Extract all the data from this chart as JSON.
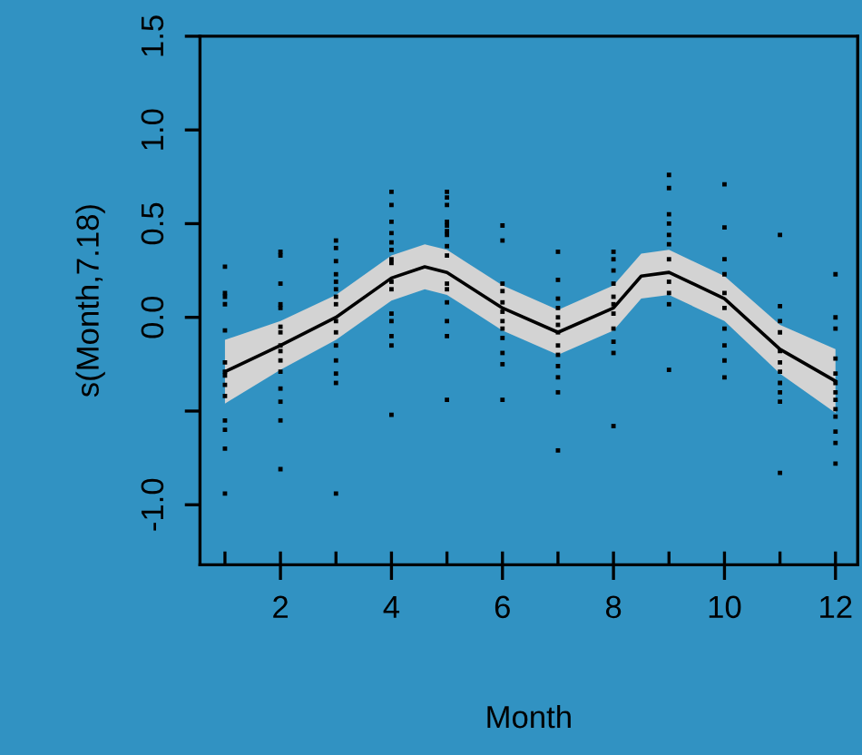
{
  "chart_data": {
    "type": "line",
    "xlabel": "Month",
    "ylabel": "s(Month,7.18)",
    "xlim": [
      0.55,
      12.4
    ],
    "ylim": [
      -1.32,
      1.5
    ],
    "xticks": [
      2,
      4,
      6,
      8,
      10,
      12
    ],
    "yticks": [
      1.5,
      {
        "value": 1.0,
        "label": "1.0"
      },
      0.5,
      {
        "value": 0.0,
        "label": "0.0"
      },
      {
        "value": -0.5,
        "label": null
      },
      {
        "value": -1.0,
        "label": "-1.0"
      }
    ],
    "grid": false,
    "legend": false,
    "tick_labels": "xy",
    "series": [
      {
        "color": "#000000",
        "x": [
          1,
          2,
          3,
          4,
          4.6,
          5,
          6,
          7,
          8,
          8.5,
          9,
          10,
          11,
          12
        ],
        "values": [
          -0.29,
          -0.15,
          0.0,
          0.21,
          0.27,
          0.24,
          0.05,
          -0.08,
          0.05,
          0.22,
          0.24,
          0.1,
          -0.17,
          -0.34
        ],
        "lower": [
          -0.46,
          -0.28,
          -0.12,
          0.09,
          0.15,
          0.12,
          -0.07,
          -0.2,
          -0.07,
          0.1,
          0.12,
          -0.02,
          -0.3,
          -0.51
        ],
        "upper": [
          -0.12,
          -0.02,
          0.12,
          0.33,
          0.39,
          0.36,
          0.17,
          0.04,
          0.17,
          0.34,
          0.36,
          0.22,
          -0.04,
          -0.17
        ]
      },
      {
        "type": "scatter",
        "color": "#000000",
        "x": [
          1,
          1,
          1,
          1,
          1,
          1,
          1,
          1,
          1,
          1,
          1,
          1,
          1,
          1,
          2,
          2,
          2,
          2,
          2,
          2,
          2,
          2,
          2,
          2,
          2,
          2,
          2,
          2,
          2,
          3,
          3,
          3,
          3,
          3,
          3,
          3,
          3,
          3,
          3,
          3,
          3,
          3,
          3,
          3,
          4,
          4,
          4,
          4,
          4,
          4,
          4,
          4,
          4,
          4,
          4,
          4,
          4,
          4,
          4,
          5,
          5,
          5,
          5,
          5,
          5,
          5,
          5,
          5,
          5,
          5,
          5,
          5,
          5,
          5,
          6,
          6,
          6,
          6,
          6,
          6,
          6,
          6,
          6,
          6,
          6,
          6,
          7,
          7,
          7,
          7,
          7,
          7,
          7,
          7,
          7,
          7,
          7,
          7,
          7,
          8,
          8,
          8,
          8,
          8,
          8,
          8,
          8,
          8,
          8,
          8,
          9,
          9,
          9,
          9,
          9,
          9,
          9,
          9,
          9,
          9,
          9,
          10,
          10,
          10,
          10,
          10,
          10,
          10,
          10,
          10,
          10,
          11,
          11,
          11,
          11,
          11,
          11,
          11,
          11,
          11,
          11,
          11,
          12,
          12,
          12,
          12,
          12,
          12,
          12,
          12,
          12,
          12,
          12,
          12,
          12
        ],
        "values": [
          0.27,
          0.13,
          0.11,
          0.07,
          -0.07,
          -0.24,
          -0.29,
          -0.31,
          -0.36,
          -0.42,
          -0.55,
          -0.6,
          -0.7,
          -0.94,
          0.35,
          0.33,
          0.18,
          0.07,
          0.05,
          -0.05,
          -0.08,
          -0.15,
          -0.18,
          -0.23,
          -0.29,
          -0.38,
          -0.45,
          -0.55,
          -0.81,
          0.41,
          0.37,
          0.3,
          0.23,
          0.19,
          0.15,
          0.11,
          0.07,
          -0.02,
          -0.08,
          -0.15,
          -0.23,
          -0.3,
          -0.35,
          -0.94,
          0.67,
          0.6,
          0.51,
          0.45,
          0.4,
          0.36,
          0.31,
          0.29,
          0.19,
          0.15,
          0.02,
          -0.02,
          -0.1,
          -0.15,
          -0.52,
          0.67,
          0.64,
          0.6,
          0.51,
          0.49,
          0.46,
          0.44,
          0.38,
          0.33,
          0.18,
          0.15,
          0.08,
          -0.02,
          -0.1,
          -0.44,
          0.49,
          0.41,
          0.18,
          0.14,
          0.08,
          0.03,
          -0.02,
          -0.06,
          -0.11,
          -0.19,
          -0.25,
          -0.44,
          0.35,
          0.2,
          0.1,
          0.05,
          0.0,
          -0.04,
          -0.08,
          -0.15,
          -0.2,
          -0.26,
          -0.32,
          -0.4,
          -0.71,
          0.35,
          0.31,
          0.25,
          0.18,
          0.11,
          0.07,
          0.02,
          -0.06,
          -0.13,
          -0.19,
          -0.58,
          0.76,
          0.69,
          0.55,
          0.5,
          0.44,
          0.39,
          0.31,
          0.19,
          0.13,
          0.07,
          -0.28,
          0.71,
          0.48,
          0.31,
          0.23,
          0.13,
          0.05,
          -0.06,
          -0.15,
          -0.23,
          -0.32,
          0.44,
          0.06,
          -0.02,
          -0.08,
          -0.18,
          -0.24,
          -0.29,
          -0.35,
          -0.4,
          -0.45,
          -0.83,
          0.23,
          0.0,
          -0.06,
          -0.22,
          -0.3,
          -0.35,
          -0.4,
          -0.44,
          -0.49,
          -0.53,
          -0.61,
          -0.67,
          -0.78
        ]
      }
    ]
  }
}
